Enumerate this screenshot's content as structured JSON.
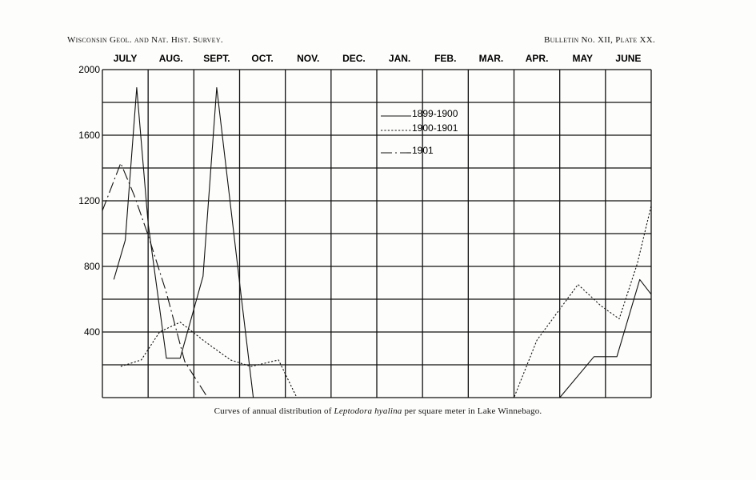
{
  "header": {
    "left": "Wisconsin Geol. and Nat. Hist. Survey.",
    "right": "Bulletin No. XII, Plate XX."
  },
  "caption": {
    "before": "Curves of annual distribution of ",
    "species": "Leptodora hyalina",
    "after": " per square meter in Lake Winnebago."
  },
  "chart_data": {
    "type": "line",
    "categories": [
      "JULY",
      "AUG.",
      "SEPT.",
      "OCT.",
      "NOV.",
      "DEC.",
      "JAN.",
      "FEB.",
      "MAR.",
      "APR.",
      "MAY",
      "JUNE"
    ],
    "x_unit": "months from start of July",
    "ylim": [
      0,
      2000
    ],
    "yticks": [
      400,
      800,
      1200,
      1600,
      2000
    ],
    "grid": true,
    "legend_position": "top-center",
    "series": [
      {
        "name": "1899-1900",
        "style": "solid",
        "points": [
          [
            0.25,
            720
          ],
          [
            0.5,
            960
          ],
          [
            0.75,
            1890
          ],
          [
            1.0,
            1060
          ],
          [
            1.4,
            240
          ],
          [
            1.7,
            240
          ],
          [
            2.2,
            740
          ],
          [
            2.5,
            1890
          ],
          [
            3.0,
            700
          ],
          [
            3.3,
            0
          ],
          [
            10.0,
            0
          ],
          [
            10.75,
            250
          ],
          [
            11.25,
            250
          ],
          [
            11.75,
            720
          ],
          [
            12.0,
            630
          ]
        ]
      },
      {
        "name": "1900-1901",
        "style": "dotted",
        "points": [
          [
            0.4,
            190
          ],
          [
            0.85,
            230
          ],
          [
            1.25,
            400
          ],
          [
            1.7,
            460
          ],
          [
            2.25,
            340
          ],
          [
            2.8,
            230
          ],
          [
            3.25,
            190
          ],
          [
            3.85,
            230
          ],
          [
            4.25,
            0
          ],
          [
            9.0,
            0
          ],
          [
            9.5,
            350
          ],
          [
            10.4,
            690
          ],
          [
            10.9,
            560
          ],
          [
            11.3,
            480
          ],
          [
            11.7,
            820
          ],
          [
            12.0,
            1170
          ]
        ]
      },
      {
        "name": "1901",
        "style": "dash-dot",
        "points": [
          [
            0.0,
            1140
          ],
          [
            0.4,
            1430
          ],
          [
            0.7,
            1230
          ],
          [
            1.0,
            990
          ],
          [
            1.4,
            640
          ],
          [
            1.8,
            220
          ],
          [
            2.3,
            0
          ]
        ]
      }
    ]
  }
}
